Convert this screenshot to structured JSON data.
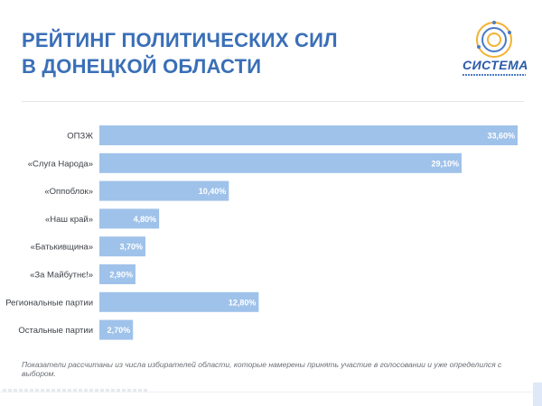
{
  "title": {
    "line1": "РЕЙТИНГ ПОЛИТИЧЕСКИХ СИЛ",
    "line2": "В ДОНЕЦКОЙ ОБЛАСТИ"
  },
  "logo": {
    "word": "СИСТЕМА"
  },
  "footnote": "Показатели рассчитаны из числа избирателей области, которые намерены принять участие в голосовании и уже определился с выбором.",
  "colors": {
    "bar": "#9fc2ea",
    "title": "#3a6fb7",
    "value_label": "#ffffff",
    "category_label": "#3d4147"
  },
  "chart_data": {
    "type": "bar",
    "orientation": "horizontal",
    "categories": [
      "ОПЗЖ",
      "«Слуга Народа»",
      "«Оппоблок»",
      "«Наш край»",
      "«Батькивщина»",
      "«За Майбутнє!»",
      "Региональные партии",
      "Остальные партии"
    ],
    "values": [
      33.6,
      29.1,
      10.4,
      4.8,
      3.7,
      2.9,
      12.8,
      2.7
    ],
    "value_labels": [
      "33,60%",
      "29,10%",
      "10,40%",
      "4,80%",
      "3,70%",
      "2,90%",
      "12,80%",
      "2,70%"
    ],
    "xlim": [
      0,
      33.6
    ],
    "grid": false,
    "legend": "none"
  }
}
